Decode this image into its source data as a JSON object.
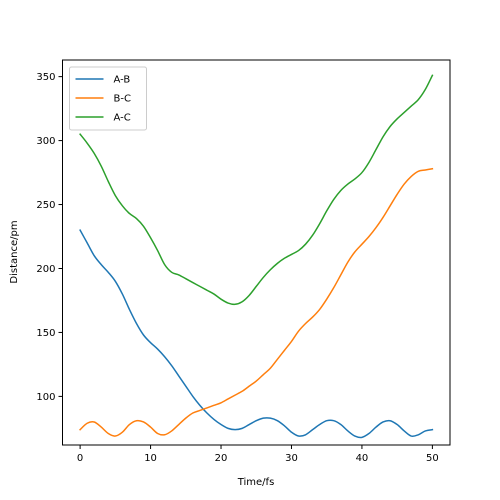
{
  "chart_data": {
    "type": "line",
    "title": "",
    "xlabel": "Time/fs",
    "ylabel": "Distance/pm",
    "xlim": [
      -2.5,
      52.5
    ],
    "ylim": [
      62,
      363
    ],
    "xticks": [
      0,
      10,
      20,
      30,
      40,
      50
    ],
    "yticks": [
      100,
      150,
      200,
      250,
      300,
      350
    ],
    "grid": false,
    "legend_position": "top-left",
    "series": [
      {
        "name": "A-B",
        "color": "#1f77b4",
        "x": [
          0,
          1,
          2,
          3,
          4,
          5,
          6,
          7,
          8,
          9,
          10,
          11,
          12,
          13,
          14,
          15,
          16,
          17,
          18,
          19,
          20,
          21,
          22,
          23,
          24,
          25,
          26,
          27,
          28,
          29,
          30,
          31,
          32,
          33,
          34,
          35,
          36,
          37,
          38,
          39,
          40,
          41,
          42,
          43,
          44,
          45,
          46,
          47,
          48,
          49,
          50
        ],
        "y": [
          230,
          220,
          210,
          203,
          197,
          190,
          180,
          168,
          157,
          148,
          142,
          137,
          131,
          124,
          116,
          108,
          100,
          93,
          87,
          82,
          78,
          75,
          74,
          75,
          78,
          81,
          83,
          83,
          81,
          77,
          72,
          69,
          70,
          74,
          78,
          81,
          81,
          78,
          73,
          69,
          68,
          71,
          76,
          80,
          81,
          78,
          73,
          69,
          70,
          73,
          74
        ]
      },
      {
        "name": "B-C",
        "color": "#ff7f0e",
        "x": [
          0,
          1,
          2,
          3,
          4,
          5,
          6,
          7,
          8,
          9,
          10,
          11,
          12,
          13,
          14,
          15,
          16,
          17,
          18,
          19,
          20,
          21,
          22,
          23,
          24,
          25,
          26,
          27,
          28,
          29,
          30,
          31,
          32,
          33,
          34,
          35,
          36,
          37,
          38,
          39,
          40,
          41,
          42,
          43,
          44,
          45,
          46,
          47,
          48,
          49,
          50
        ],
        "y": [
          74,
          79,
          80,
          76,
          71,
          69,
          72,
          78,
          81,
          80,
          76,
          71,
          70,
          73,
          78,
          83,
          87,
          89,
          91,
          93,
          95,
          98,
          101,
          104,
          108,
          112,
          117,
          122,
          129,
          136,
          143,
          151,
          157,
          162,
          168,
          176,
          185,
          195,
          205,
          213,
          219,
          225,
          232,
          240,
          249,
          258,
          266,
          272,
          276,
          277,
          278
        ]
      },
      {
        "name": "A-C",
        "color": "#2ca02c",
        "x": [
          0,
          1,
          2,
          3,
          4,
          5,
          6,
          7,
          8,
          9,
          10,
          11,
          12,
          13,
          14,
          15,
          16,
          17,
          18,
          19,
          20,
          21,
          22,
          23,
          24,
          25,
          26,
          27,
          28,
          29,
          30,
          31,
          32,
          33,
          34,
          35,
          36,
          37,
          38,
          39,
          40,
          41,
          42,
          43,
          44,
          45,
          46,
          47,
          48,
          49,
          50
        ],
        "y": [
          305,
          298,
          290,
          280,
          268,
          257,
          249,
          243,
          239,
          233,
          224,
          214,
          203,
          197,
          195,
          192,
          189,
          186,
          183,
          180,
          176,
          173,
          172,
          174,
          179,
          186,
          193,
          199,
          204,
          208,
          211,
          214,
          219,
          226,
          235,
          245,
          254,
          261,
          266,
          270,
          275,
          283,
          293,
          303,
          311,
          317,
          322,
          327,
          332,
          340,
          351
        ]
      }
    ]
  }
}
